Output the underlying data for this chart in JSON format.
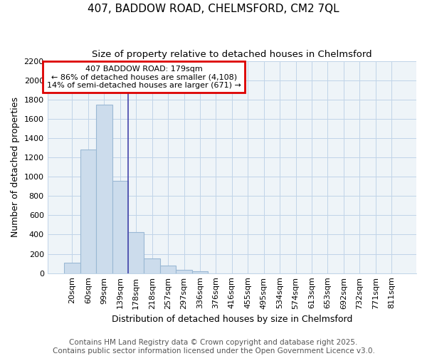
{
  "title": "407, BADDOW ROAD, CHELMSFORD, CM2 7QL",
  "subtitle": "Size of property relative to detached houses in Chelmsford",
  "xlabel": "Distribution of detached houses by size in Chelmsford",
  "ylabel": "Number of detached properties",
  "footer_line1": "Contains HM Land Registry data © Crown copyright and database right 2025.",
  "footer_line2": "Contains public sector information licensed under the Open Government Licence v3.0.",
  "categories": [
    "20sqm",
    "60sqm",
    "99sqm",
    "139sqm",
    "178sqm",
    "218sqm",
    "257sqm",
    "297sqm",
    "336sqm",
    "376sqm",
    "416sqm",
    "455sqm",
    "495sqm",
    "534sqm",
    "574sqm",
    "613sqm",
    "653sqm",
    "692sqm",
    "732sqm",
    "771sqm",
    "811sqm"
  ],
  "values": [
    110,
    1280,
    1750,
    960,
    425,
    150,
    80,
    35,
    20,
    0,
    0,
    0,
    0,
    0,
    0,
    0,
    0,
    0,
    0,
    0,
    0
  ],
  "bar_color": "#ccdcec",
  "bar_edge_color": "#9ab8d4",
  "highlight_bar_index": 3,
  "highlight_line_color": "#4444aa",
  "property_label": "407 BADDOW ROAD: 179sqm",
  "annotation_line1": "← 86% of detached houses are smaller (4,108)",
  "annotation_line2": "14% of semi-detached houses are larger (671) →",
  "annotation_box_color": "#ffffff",
  "annotation_box_edge_color": "#dd0000",
  "ylim": [
    0,
    2200
  ],
  "yticks": [
    0,
    200,
    400,
    600,
    800,
    1000,
    1200,
    1400,
    1600,
    1800,
    2000,
    2200
  ],
  "plot_bg_color": "#eef4f8",
  "background_color": "#ffffff",
  "grid_color": "#c0d4e8",
  "title_fontsize": 11,
  "subtitle_fontsize": 9.5,
  "axis_label_fontsize": 9,
  "tick_fontsize": 8,
  "footer_fontsize": 7.5
}
